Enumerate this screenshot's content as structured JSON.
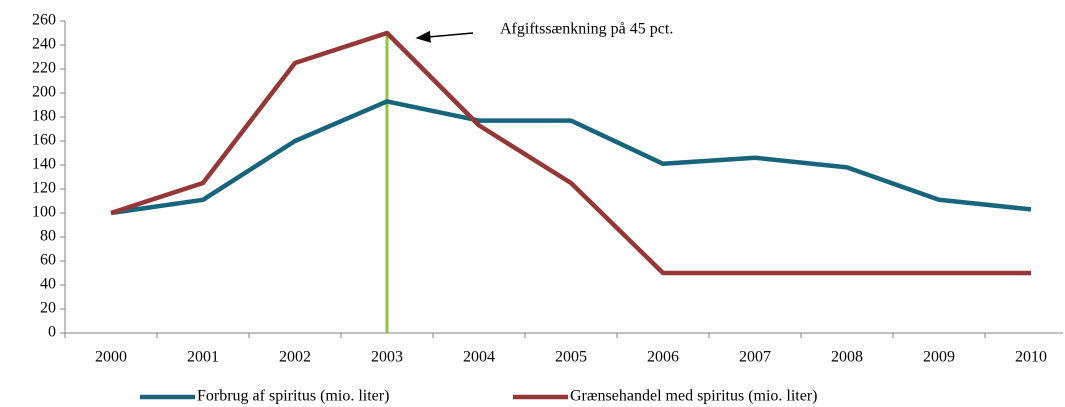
{
  "chart_data": {
    "type": "line",
    "annotation": {
      "text": "Afgiftssænkning på 45 pct.",
      "x": "2003"
    },
    "categories": [
      "2000",
      "2001",
      "2002",
      "2003",
      "2004",
      "2005",
      "2006",
      "2007",
      "2008",
      "2009",
      "2010"
    ],
    "series": [
      {
        "name": "Forbrug af spiritus (mio. liter)",
        "color": "#17657d",
        "values": [
          100,
          111,
          160,
          193,
          177,
          177,
          141,
          146,
          138,
          111,
          103
        ]
      },
      {
        "name": "Grænsehandel med spiritus (mio. liter)",
        "color": "#953735",
        "values": [
          100,
          125,
          225,
          250,
          173,
          125,
          50,
          50,
          50,
          50,
          50
        ]
      }
    ],
    "marker_color": "#8cc63f",
    "ylim": [
      0,
      260
    ],
    "yticks": [
      0,
      20,
      40,
      60,
      80,
      100,
      120,
      140,
      160,
      180,
      200,
      220,
      240,
      260
    ],
    "legend": "bottom"
  }
}
